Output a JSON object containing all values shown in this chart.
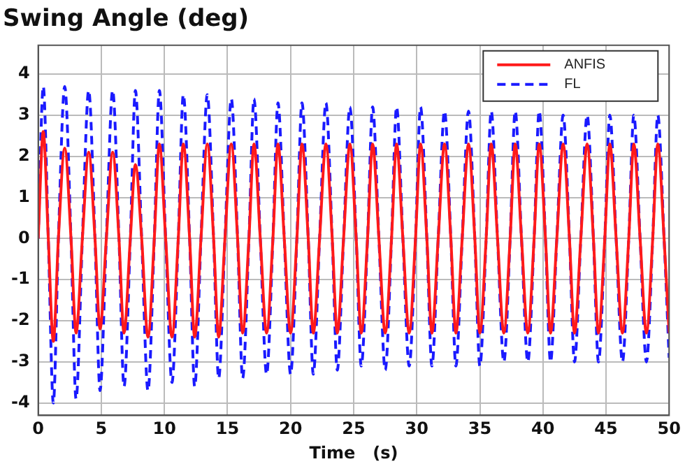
{
  "chart_data": {
    "type": "line",
    "title": "Swing Angle (deg)",
    "xlabel": "Time   (s)",
    "x": [
      0,
      0.4,
      0.8,
      1.2,
      1.6,
      2.1,
      2.6,
      3.0,
      3.5,
      4.0,
      4.5,
      4.9,
      5.4,
      5.9,
      6.4,
      6.8,
      7.3,
      7.7,
      8.2,
      8.7,
      9.2,
      9.6,
      10.1,
      10.6,
      11.1,
      11.5,
      12.0,
      12.4,
      12.9,
      13.4,
      13.9,
      14.3,
      14.8,
      15.3,
      15.8,
      16.2,
      16.7,
      17.1,
      17.6,
      18.1,
      18.6,
      19.0,
      19.5,
      20.0,
      20.5,
      20.9,
      21.4,
      21.8,
      22.3,
      22.8,
      23.3,
      23.7,
      24.2,
      24.7,
      25.2,
      25.6,
      26.1,
      26.5,
      27.0,
      27.5,
      28.0,
      28.4,
      28.9,
      29.4,
      29.9,
      30.3,
      30.8,
      31.2,
      31.7,
      32.2,
      32.7,
      33.1,
      33.6,
      34.1,
      34.6,
      35.0,
      35.5,
      35.9,
      36.4,
      36.9,
      37.4,
      37.8,
      38.3,
      38.8,
      39.3,
      39.7,
      40.2,
      40.6,
      41.1,
      41.6,
      42.1,
      42.5,
      43.0,
      43.5,
      44.0,
      44.4,
      44.9,
      45.3,
      45.8,
      46.3,
      46.8,
      47.2,
      47.7,
      48.2,
      48.7,
      49.1,
      49.6,
      50.0
    ],
    "series": [
      {
        "name": "ANFIS",
        "color": "#ff1a1a",
        "line_style": "solid",
        "values": [
          0,
          2.6,
          0,
          -2.5,
          0,
          2.2,
          0,
          -2.3,
          0,
          2.1,
          0,
          -2.2,
          0,
          2.1,
          0,
          -2.3,
          0,
          1.8,
          0,
          -2.4,
          0,
          2.3,
          0,
          -2.4,
          0,
          2.3,
          0,
          -2.4,
          0,
          2.3,
          0,
          -2.4,
          0,
          2.3,
          0,
          -2.3,
          0,
          2.3,
          0,
          -2.3,
          0,
          2.3,
          0,
          -2.3,
          0,
          2.3,
          0,
          -2.3,
          0,
          2.3,
          0,
          -2.3,
          0,
          2.3,
          0,
          -2.3,
          0,
          2.3,
          0,
          -2.3,
          0,
          2.3,
          0,
          -2.3,
          0,
          2.3,
          0,
          -2.3,
          0,
          2.3,
          0,
          -2.3,
          0,
          2.3,
          0,
          -2.3,
          0,
          2.3,
          0,
          -2.3,
          0,
          2.3,
          0,
          -2.3,
          0,
          2.3,
          0,
          -2.3,
          0,
          2.3,
          0,
          -2.3,
          0,
          2.3,
          0,
          -2.3,
          0,
          2.3,
          0,
          -2.3,
          0,
          2.3,
          0,
          -2.3,
          0,
          2.3,
          0,
          -2.3
        ]
      },
      {
        "name": "FL",
        "color": "#1a1aff",
        "line_style": "dashed",
        "values": [
          0,
          3.7,
          0,
          -4.0,
          0,
          3.7,
          0,
          -3.9,
          0,
          3.6,
          0,
          -3.7,
          0,
          3.6,
          0,
          -3.6,
          0,
          3.6,
          0,
          -3.7,
          0,
          3.6,
          0,
          -3.5,
          0,
          3.5,
          0,
          -3.6,
          0,
          3.5,
          0,
          -3.4,
          0,
          3.4,
          0,
          -3.4,
          0,
          3.4,
          0,
          -3.3,
          0,
          3.3,
          0,
          -3.3,
          0,
          3.3,
          0,
          -3.3,
          0,
          3.3,
          0,
          -3.2,
          0,
          3.2,
          0,
          -3.1,
          0,
          3.2,
          0,
          -3.2,
          0,
          3.2,
          0,
          -3.1,
          0,
          3.2,
          0,
          -3.1,
          0,
          3.1,
          0,
          -3.1,
          0,
          3.1,
          0,
          -3.1,
          0,
          3.1,
          0,
          -3.0,
          0,
          3.1,
          0,
          -3.0,
          0,
          3.1,
          0,
          -3.0,
          0,
          3.0,
          0,
          -3.0,
          0,
          3.0,
          0,
          -3.0,
          0,
          3.0,
          0,
          -3.0,
          0,
          3.0,
          0,
          -3.0,
          0,
          3.0,
          0,
          -2.9
        ]
      }
    ],
    "xlim": [
      0,
      50
    ],
    "xticks": [
      0,
      5,
      10,
      15,
      20,
      25,
      30,
      35,
      40,
      45,
      50
    ],
    "ylim": [
      -4.3,
      4.7
    ],
    "yticks": [
      -4,
      -3,
      -2,
      -1,
      0,
      1,
      2,
      3,
      4
    ],
    "grid": true,
    "legend": "top right",
    "marker": "none"
  }
}
